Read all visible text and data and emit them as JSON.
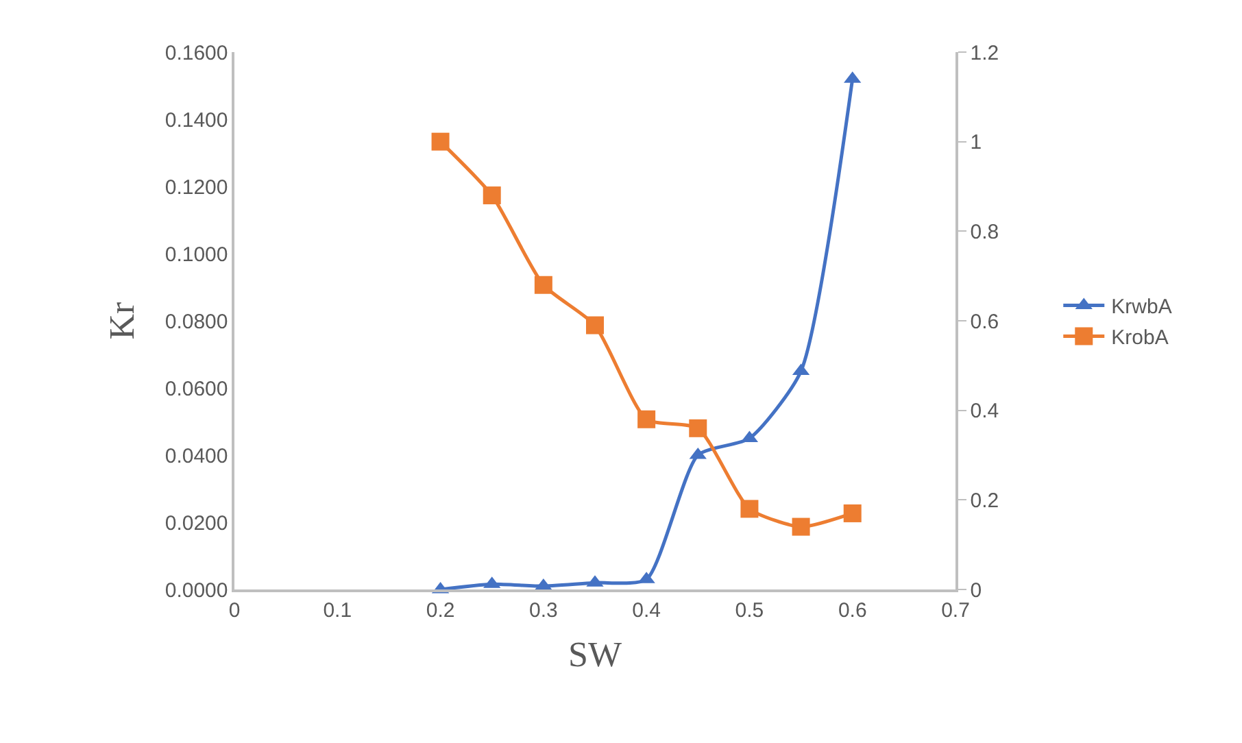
{
  "chart_data": {
    "type": "line",
    "xlabel": "SW",
    "ylabel": "Kr",
    "x": [
      0.2,
      0.25,
      0.3,
      0.35,
      0.4,
      0.45,
      0.5,
      0.55,
      0.6
    ],
    "series": [
      {
        "name": "KrwbA",
        "color": "#4472c4",
        "marker": "triangle",
        "values": [
          0.0,
          0.0016,
          0.001,
          0.002,
          0.003,
          0.04,
          0.045,
          0.065,
          0.152
        ]
      },
      {
        "name": "KrobA",
        "color": "#ed7d31",
        "marker": "square",
        "axis": "y2",
        "values": [
          1.0,
          0.88,
          0.68,
          0.59,
          0.38,
          0.36,
          0.18,
          0.14,
          0.17
        ]
      }
    ],
    "xlim": [
      0,
      0.7
    ],
    "xticks": [
      0,
      0.1,
      0.2,
      0.3,
      0.4,
      0.5,
      0.6,
      0.7
    ],
    "ylim": [
      0,
      0.16
    ],
    "yticks": [
      {
        "value": 0,
        "label": "0.0000"
      },
      {
        "value": 0.02,
        "label": "0.0200"
      },
      {
        "value": 0.04,
        "label": "0.0400"
      },
      {
        "value": 0.06,
        "label": "0.0600"
      },
      {
        "value": 0.08,
        "label": "0.0800"
      },
      {
        "value": 0.1,
        "label": "0.1000"
      },
      {
        "value": 0.12,
        "label": "0.1200"
      },
      {
        "value": 0.14,
        "label": "0.1400"
      },
      {
        "value": 0.16,
        "label": "0.1600"
      }
    ],
    "y2lim": [
      0,
      1.2
    ],
    "y2ticks": [
      0,
      0.2,
      0.4,
      0.6,
      0.8,
      1,
      1.2
    ],
    "legend": "right",
    "line_style": "solid"
  }
}
